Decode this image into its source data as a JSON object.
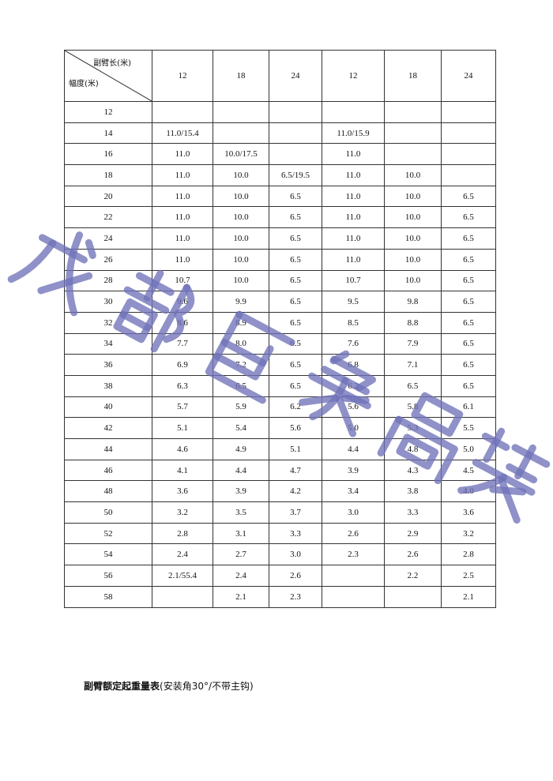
{
  "table": {
    "header": {
      "corner_top": "副臂长(米)",
      "corner_bottom": "幅度(米)",
      "columns": [
        "12",
        "18",
        "24",
        "12",
        "18",
        "24"
      ]
    },
    "rows": [
      [
        "12",
        "",
        "",
        "",
        "",
        "",
        ""
      ],
      [
        "14",
        "11.0/15.4",
        "",
        "",
        "11.0/15.9",
        "",
        ""
      ],
      [
        "16",
        "11.0",
        "10.0/17.5",
        "",
        "11.0",
        "",
        ""
      ],
      [
        "18",
        "11.0",
        "10.0",
        "6.5/19.5",
        "11.0",
        "10.0",
        ""
      ],
      [
        "20",
        "11.0",
        "10.0",
        "6.5",
        "11.0",
        "10.0",
        "6.5"
      ],
      [
        "22",
        "11.0",
        "10.0",
        "6.5",
        "11.0",
        "10.0",
        "6.5"
      ],
      [
        "24",
        "11.0",
        "10.0",
        "6.5",
        "11.0",
        "10.0",
        "6.5"
      ],
      [
        "26",
        "11.0",
        "10.0",
        "6.5",
        "11.0",
        "10.0",
        "6.5"
      ],
      [
        "28",
        "10.7",
        "10.0",
        "6.5",
        "10.7",
        "10.0",
        "6.5"
      ],
      [
        "30",
        "9.6",
        "9.9",
        "6.5",
        "9.5",
        "9.8",
        "6.5"
      ],
      [
        "32",
        "8.6",
        "8.9",
        "6.5",
        "8.5",
        "8.8",
        "6.5"
      ],
      [
        "34",
        "7.7",
        "8.0",
        "6.5",
        "7.6",
        "7.9",
        "6.5"
      ],
      [
        "36",
        "6.9",
        "7.2",
        "6.5",
        "6.8",
        "7.1",
        "6.5"
      ],
      [
        "38",
        "6.3",
        "6.5",
        "6.5",
        "6.2",
        "6.5",
        "6.5"
      ],
      [
        "40",
        "5.7",
        "5.9",
        "6.2",
        "5.6",
        "5.8",
        "6.1"
      ],
      [
        "42",
        "5.1",
        "5.4",
        "5.6",
        "5.0",
        "5.3",
        "5.5"
      ],
      [
        "44",
        "4.6",
        "4.9",
        "5.1",
        "4.4",
        "4.8",
        "5.0"
      ],
      [
        "46",
        "4.1",
        "4.4",
        "4.7",
        "3.9",
        "4.3",
        "4.5"
      ],
      [
        "48",
        "3.6",
        "3.9",
        "4.2",
        "3.4",
        "3.8",
        "4.0"
      ],
      [
        "50",
        "3.2",
        "3.5",
        "3.7",
        "3.0",
        "3.3",
        "3.6"
      ],
      [
        "52",
        "2.8",
        "3.1",
        "3.3",
        "2.6",
        "2.9",
        "3.2"
      ],
      [
        "54",
        "2.4",
        "2.7",
        "3.0",
        "2.3",
        "2.6",
        "2.8"
      ],
      [
        "56",
        "2.1/55.4",
        "2.4",
        "2.6",
        "",
        "2.2",
        "2.5"
      ],
      [
        "58",
        "",
        "2.1",
        "2.3",
        "",
        "",
        "2.1"
      ]
    ]
  },
  "caption": {
    "title": "副臂额定起重量表",
    "note": "(安装角30°/不带主钩)"
  },
  "watermark": {
    "chars": [
      "成",
      "都",
      "巨",
      "象",
      "吊",
      "装"
    ],
    "color": "#6f72b8"
  }
}
